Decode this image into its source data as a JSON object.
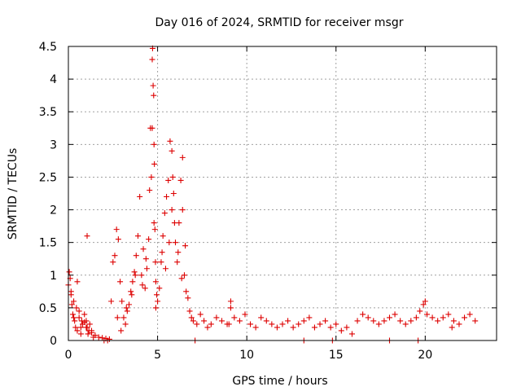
{
  "chart_data": {
    "type": "scatter",
    "title": "Day 016 of 2024, SRMTID for receiver msgr",
    "xlabel": "GPS time / hours",
    "ylabel": "SRMTID / TECUs",
    "xlim": [
      0,
      24
    ],
    "ylim": [
      0,
      4.5
    ],
    "xticks": [
      0,
      5,
      10,
      15,
      20
    ],
    "xtick_labels": [
      "0",
      "5",
      "10",
      "15",
      "20"
    ],
    "yticks": [
      0,
      0.5,
      1,
      1.5,
      2,
      2.5,
      3,
      3.5,
      4,
      4.5
    ],
    "ytick_labels": [
      "0",
      "0.5",
      "1",
      "1.5",
      "2",
      "2.5",
      "3",
      "3.5",
      "4",
      "4.5"
    ],
    "grid": true,
    "marker": "+",
    "color": "#dd0000",
    "series": [
      {
        "name": "SRMTID",
        "x": [
          0.0,
          0.05,
          0.1,
          0.15,
          0.2,
          0.25,
          0.3,
          0.35,
          0.4,
          0.5,
          0.6,
          0.7,
          0.8,
          0.9,
          1.0,
          1.05,
          1.1,
          1.2,
          1.3,
          1.4,
          0.15,
          0.3,
          0.45,
          0.6,
          0.75,
          0.9,
          1.0,
          1.15,
          1.3,
          1.5,
          1.7,
          1.9,
          2.1,
          2.3,
          2.4,
          2.5,
          2.6,
          2.7,
          2.8,
          2.9,
          3.0,
          3.1,
          3.2,
          3.3,
          3.4,
          3.5,
          3.6,
          3.7,
          3.8,
          3.9,
          4.0,
          4.1,
          4.2,
          4.3,
          4.4,
          4.5,
          4.55,
          4.6,
          4.65,
          4.7,
          4.72,
          4.75,
          4.78,
          4.8,
          4.82,
          4.85,
          4.88,
          4.9,
          4.95,
          5.0,
          5.1,
          5.2,
          5.3,
          5.4,
          5.5,
          5.6,
          5.7,
          5.8,
          5.85,
          5.9,
          5.95,
          6.0,
          6.1,
          6.2,
          6.3,
          6.4,
          6.5,
          6.6,
          6.7,
          6.8,
          6.9,
          7.0,
          7.2,
          7.4,
          7.6,
          7.8,
          8.0,
          8.3,
          8.6,
          8.9,
          9.1,
          9.3,
          9.6,
          9.9,
          10.2,
          10.5,
          10.8,
          11.1,
          11.4,
          11.7,
          12.0,
          12.3,
          12.6,
          12.9,
          13.2,
          13.5,
          13.8,
          14.1,
          14.4,
          14.7,
          15.0,
          15.3,
          15.6,
          15.9,
          16.2,
          16.5,
          16.8,
          17.1,
          17.4,
          17.7,
          18.0,
          18.3,
          18.6,
          18.9,
          19.2,
          19.5,
          19.7,
          19.9,
          20.1,
          20.4,
          20.7,
          21.0,
          21.3,
          21.6,
          21.9,
          22.2,
          22.5,
          22.8,
          2.75,
          2.95,
          3.25,
          3.55,
          3.75,
          4.15,
          4.35,
          5.25,
          5.45,
          5.65,
          6.15,
          6.35,
          6.55,
          1.05,
          2.0,
          2.2,
          7.1,
          13.2,
          14.8,
          18.0,
          19.6,
          0.5,
          0.7,
          4.7,
          4.8,
          4.9,
          5.8,
          6.4,
          9.1,
          9.0,
          20.0,
          21.5
        ],
        "y": [
          0.85,
          1.05,
          0.95,
          0.7,
          0.55,
          0.4,
          0.35,
          0.3,
          0.2,
          0.15,
          0.35,
          0.1,
          0.25,
          0.4,
          0.3,
          0.2,
          0.1,
          0.25,
          0.15,
          0.05,
          0.75,
          0.6,
          0.5,
          0.45,
          0.3,
          0.28,
          0.2,
          0.15,
          0.12,
          0.08,
          0.05,
          0.04,
          0.03,
          0.02,
          0.6,
          1.2,
          1.3,
          1.7,
          1.55,
          0.9,
          0.6,
          0.35,
          0.25,
          0.45,
          0.55,
          0.75,
          0.9,
          1.05,
          1.3,
          1.6,
          2.2,
          1.0,
          1.4,
          0.8,
          1.1,
          1.55,
          2.3,
          3.25,
          2.5,
          4.3,
          4.47,
          3.9,
          3.75,
          3.0,
          2.7,
          1.7,
          1.2,
          0.9,
          0.7,
          0.6,
          0.8,
          1.2,
          1.6,
          1.95,
          2.2,
          2.45,
          3.05,
          2.9,
          2.5,
          2.25,
          1.8,
          1.5,
          1.2,
          1.8,
          2.45,
          2.8,
          1.0,
          0.75,
          0.65,
          0.45,
          0.35,
          0.3,
          0.25,
          0.4,
          0.3,
          0.2,
          0.25,
          0.35,
          0.3,
          0.25,
          0.6,
          0.35,
          0.3,
          0.4,
          0.25,
          0.2,
          0.35,
          0.3,
          0.25,
          0.2,
          0.25,
          0.3,
          0.2,
          0.25,
          0.3,
          0.35,
          0.2,
          0.25,
          0.3,
          0.2,
          0.25,
          0.15,
          0.2,
          0.1,
          0.3,
          0.4,
          0.35,
          0.3,
          0.25,
          0.3,
          0.35,
          0.4,
          0.3,
          0.25,
          0.3,
          0.35,
          0.45,
          0.55,
          0.4,
          0.35,
          0.3,
          0.35,
          0.4,
          0.3,
          0.25,
          0.35,
          0.4,
          0.3,
          0.35,
          0.15,
          0.5,
          0.7,
          1.0,
          0.85,
          1.25,
          1.35,
          1.1,
          1.5,
          1.35,
          0.95,
          1.45,
          1.6,
          0.0,
          0.0,
          0.0,
          0.0,
          0.0,
          0.0,
          0.0,
          0.9,
          0.2,
          3.25,
          1.8,
          0.5,
          2.0,
          2.0,
          0.5,
          0.25,
          0.6,
          0.2
        ]
      }
    ]
  }
}
